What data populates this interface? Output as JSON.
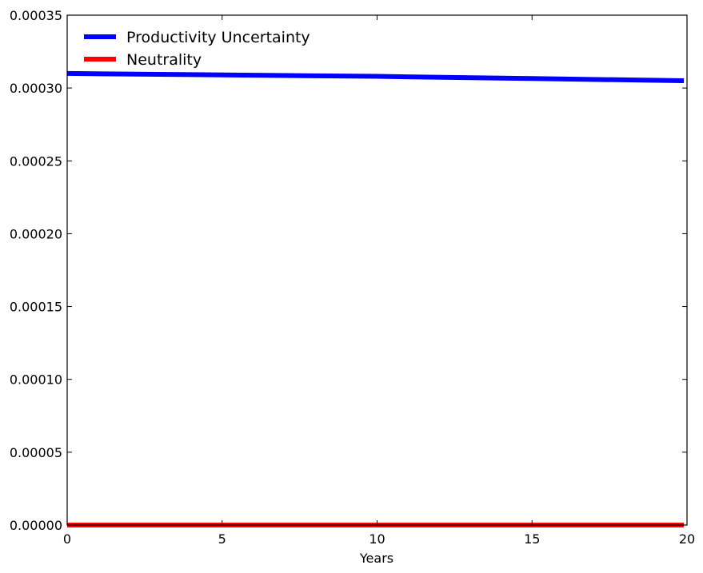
{
  "chart_data": {
    "type": "line",
    "title": "",
    "xlabel": "Years",
    "ylabel": "",
    "xlim": [
      0,
      20
    ],
    "ylim": [
      0,
      0.00035
    ],
    "x_ticks": [
      0,
      5,
      10,
      15,
      20
    ],
    "x_tick_labels": [
      "0",
      "5",
      "10",
      "15",
      "20"
    ],
    "y_ticks": [
      0,
      5e-05,
      0.0001,
      0.00015,
      0.0002,
      0.00025,
      0.0003,
      0.00035
    ],
    "y_tick_labels": [
      "0.00000",
      "0.00005",
      "0.00010",
      "0.00015",
      "0.00020",
      "0.00025",
      "0.00030",
      "0.00035"
    ],
    "grid": false,
    "legend_position": "top-left",
    "x": [
      0,
      5,
      10,
      15,
      19.9
    ],
    "series": [
      {
        "name": "Productivity Uncertainty",
        "color": "#0000ff",
        "values": [
          0.00031,
          0.000309,
          0.000308,
          0.0003065,
          0.000305
        ]
      },
      {
        "name": "Neutrality",
        "color": "#ff0000",
        "values": [
          0,
          0,
          0,
          0,
          0
        ]
      }
    ]
  }
}
